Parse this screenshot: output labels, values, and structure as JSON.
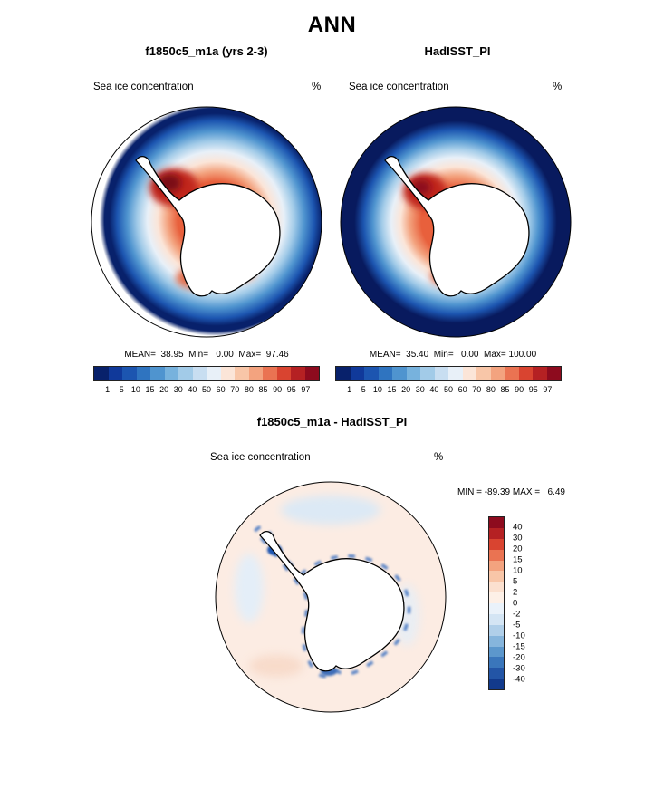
{
  "title": "ANN",
  "panels": [
    {
      "title": "f1850c5_m1a (yrs 2-3)",
      "field_label": "Sea ice concentration",
      "units": "%",
      "stats": "MEAN=  38.95  Min=   0.00  Max=  97.46",
      "ticks": [
        "1",
        "5",
        "10",
        "15",
        "20",
        "30",
        "40",
        "50",
        "60",
        "70",
        "80",
        "85",
        "90",
        "95",
        "97"
      ]
    },
    {
      "title": "HadISST_PI",
      "field_label": "Sea ice concentration",
      "units": "%",
      "stats": "MEAN=  35.40  Min=   0.00  Max= 100.00",
      "ticks": [
        "1",
        "5",
        "10",
        "15",
        "20",
        "30",
        "40",
        "50",
        "60",
        "70",
        "80",
        "85",
        "90",
        "95",
        "97"
      ]
    }
  ],
  "difference": {
    "title": "f1850c5_m1a - HadISST_PI",
    "field_label": "Sea ice concentration",
    "units": "%",
    "stats": "MIN = -89.39 MAX =   6.49",
    "ticks": [
      "40",
      "30",
      "20",
      "15",
      "10",
      "5",
      "2",
      "0",
      "-2",
      "-5",
      "-10",
      "-15",
      "-20",
      "-30",
      "-40"
    ]
  },
  "colors": {
    "conc_scale": [
      "#08216b",
      "#10399a",
      "#1c55b0",
      "#2f74c0",
      "#4f94cf",
      "#77b2dd",
      "#a2cbe8",
      "#c8def1",
      "#e8f0f8",
      "#fbe5d8",
      "#f8c6a8",
      "#f3a37f",
      "#ea7352",
      "#d94430",
      "#b52123",
      "#8d0b1e"
    ],
    "diff_scale": [
      "#8d0b1e",
      "#b52123",
      "#d94430",
      "#ea7352",
      "#f3a37f",
      "#f8c6a8",
      "#fbe0cf",
      "#fdf0e7",
      "#eaf2fa",
      "#d4e5f4",
      "#b0cfe9",
      "#86b5dc",
      "#5c97cc",
      "#3a76bb",
      "#2355a6",
      "#123a8c"
    ],
    "land": "#ffffff",
    "coast": "#000000"
  },
  "chart_data": [
    {
      "type": "heatmap",
      "title": "f1850c5_m1a (yrs 2-3)",
      "variable": "Sea ice concentration",
      "units": "%",
      "projection": "south-polar-stereographic",
      "mean": 38.95,
      "min": 0.0,
      "max": 97.46,
      "contour_levels": [
        1,
        5,
        10,
        15,
        20,
        30,
        40,
        50,
        60,
        70,
        80,
        85,
        90,
        95,
        97
      ],
      "legend_position": "bottom"
    },
    {
      "type": "heatmap",
      "title": "HadISST_PI",
      "variable": "Sea ice concentration",
      "units": "%",
      "projection": "south-polar-stereographic",
      "mean": 35.4,
      "min": 0.0,
      "max": 100.0,
      "contour_levels": [
        1,
        5,
        10,
        15,
        20,
        30,
        40,
        50,
        60,
        70,
        80,
        85,
        90,
        95,
        97
      ],
      "legend_position": "bottom"
    },
    {
      "type": "heatmap",
      "title": "f1850c5_m1a - HadISST_PI",
      "variable": "Sea ice concentration",
      "units": "%",
      "projection": "south-polar-stereographic",
      "min": -89.39,
      "max": 6.49,
      "contour_levels": [
        -40,
        -30,
        -20,
        -15,
        -10,
        -5,
        -2,
        0,
        2,
        5,
        10,
        15,
        20,
        30,
        40
      ],
      "legend_position": "right"
    }
  ]
}
